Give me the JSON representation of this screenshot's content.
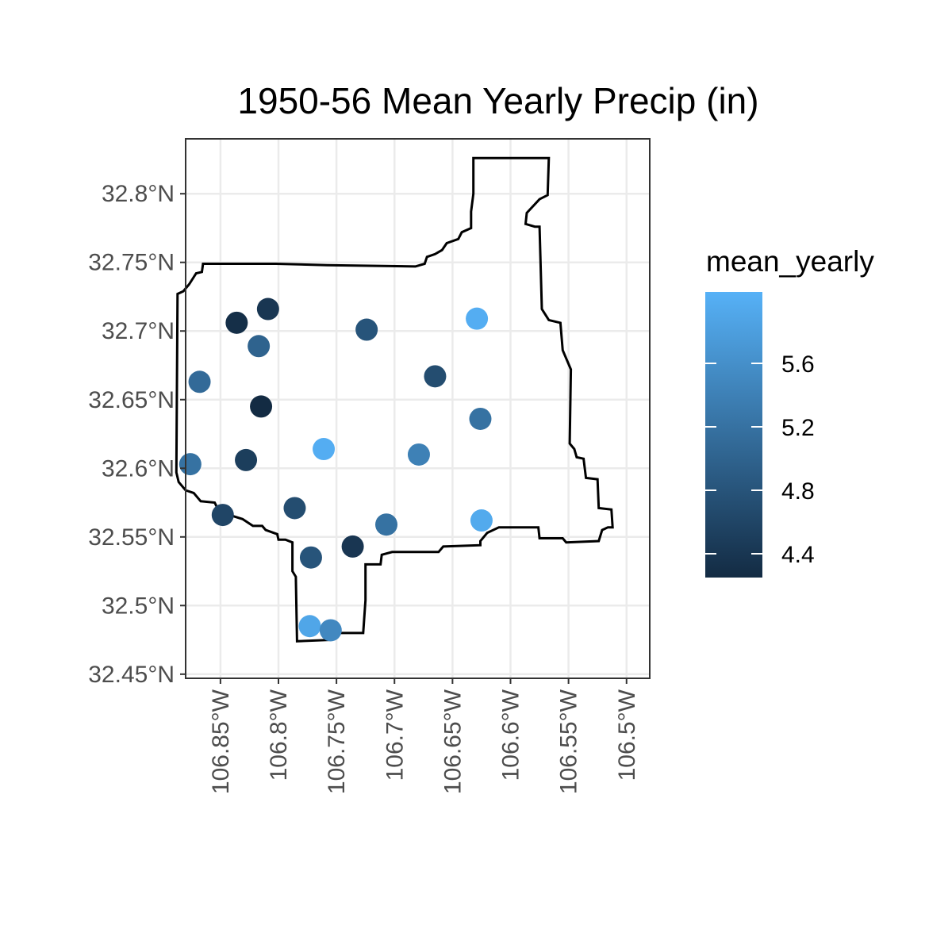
{
  "chart_data": {
    "type": "scatter",
    "title": "1950-56 Mean Yearly Precip (in)",
    "xlabel": "",
    "ylabel": "",
    "x_unit": "degrees longitude (negative = W)",
    "y_unit": "degrees latitude (N)",
    "xlim": [
      -106.88,
      -106.48
    ],
    "ylim": [
      32.447,
      32.84
    ],
    "x_ticks": [
      {
        "value": -106.85,
        "label": "106.85°W"
      },
      {
        "value": -106.8,
        "label": "106.8°W"
      },
      {
        "value": -106.75,
        "label": "106.75°W"
      },
      {
        "value": -106.7,
        "label": "106.7°W"
      },
      {
        "value": -106.65,
        "label": "106.65°W"
      },
      {
        "value": -106.6,
        "label": "106.6°W"
      },
      {
        "value": -106.55,
        "label": "106.55°W"
      },
      {
        "value": -106.5,
        "label": "106.5°W"
      }
    ],
    "y_ticks": [
      {
        "value": 32.8,
        "label": "32.8°N"
      },
      {
        "value": 32.75,
        "label": "32.75°N"
      },
      {
        "value": 32.7,
        "label": "32.7°N"
      },
      {
        "value": 32.65,
        "label": "32.65°N"
      },
      {
        "value": 32.6,
        "label": "32.6°N"
      },
      {
        "value": 32.55,
        "label": "32.55°N"
      },
      {
        "value": 32.5,
        "label": "32.5°N"
      },
      {
        "value": 32.45,
        "label": "32.45°N"
      }
    ],
    "grid": true,
    "legend": {
      "title": "mean_yearly",
      "position": "right",
      "min": 4.25,
      "max": 6.05,
      "ticks": [
        {
          "value": 5.6,
          "label": "5.6"
        },
        {
          "value": 5.2,
          "label": "5.2"
        },
        {
          "value": 4.8,
          "label": "4.8"
        },
        {
          "value": 4.4,
          "label": "4.4"
        }
      ],
      "color_low": "#132B43",
      "color_high": "#56B1F7"
    },
    "points": [
      {
        "lon": -106.836,
        "lat": 32.706,
        "mean_yearly": 4.3
      },
      {
        "lon": -106.809,
        "lat": 32.716,
        "mean_yearly": 4.4
      },
      {
        "lon": -106.817,
        "lat": 32.689,
        "mean_yearly": 5.0
      },
      {
        "lon": -106.724,
        "lat": 32.701,
        "mean_yearly": 4.8
      },
      {
        "lon": -106.629,
        "lat": 32.709,
        "mean_yearly": 6.0
      },
      {
        "lon": -106.868,
        "lat": 32.663,
        "mean_yearly": 5.1
      },
      {
        "lon": -106.665,
        "lat": 32.667,
        "mean_yearly": 4.7
      },
      {
        "lon": -106.815,
        "lat": 32.645,
        "mean_yearly": 4.25
      },
      {
        "lon": -106.626,
        "lat": 32.636,
        "mean_yearly": 5.2
      },
      {
        "lon": -106.761,
        "lat": 32.614,
        "mean_yearly": 6.0
      },
      {
        "lon": -106.679,
        "lat": 32.61,
        "mean_yearly": 5.4
      },
      {
        "lon": -106.828,
        "lat": 32.606,
        "mean_yearly": 4.5
      },
      {
        "lon": -106.876,
        "lat": 32.603,
        "mean_yearly": 5.2
      },
      {
        "lon": -106.786,
        "lat": 32.571,
        "mean_yearly": 4.7
      },
      {
        "lon": -106.848,
        "lat": 32.566,
        "mean_yearly": 4.6
      },
      {
        "lon": -106.625,
        "lat": 32.562,
        "mean_yearly": 5.95
      },
      {
        "lon": -106.707,
        "lat": 32.559,
        "mean_yearly": 5.2
      },
      {
        "lon": -106.736,
        "lat": 32.543,
        "mean_yearly": 4.4
      },
      {
        "lon": -106.772,
        "lat": 32.535,
        "mean_yearly": 4.8
      },
      {
        "lon": -106.773,
        "lat": 32.485,
        "mean_yearly": 5.9
      },
      {
        "lon": -106.755,
        "lat": 32.482,
        "mean_yearly": 5.5
      }
    ],
    "boundary": [
      [
        -106.632,
        32.826
      ],
      [
        -106.567,
        32.826
      ],
      [
        -106.568,
        32.799
      ],
      [
        -106.575,
        32.796
      ],
      [
        -106.586,
        32.786
      ],
      [
        -106.587,
        32.778
      ],
      [
        -106.579,
        32.776
      ],
      [
        -106.575,
        32.776
      ],
      [
        -106.573,
        32.716
      ],
      [
        -106.567,
        32.708
      ],
      [
        -106.557,
        32.706
      ],
      [
        -106.555,
        32.686
      ],
      [
        -106.548,
        32.672
      ],
      [
        -106.549,
        32.618
      ],
      [
        -106.545,
        32.614
      ],
      [
        -106.543,
        32.608
      ],
      [
        -106.537,
        32.607
      ],
      [
        -106.535,
        32.593
      ],
      [
        -106.525,
        32.592
      ],
      [
        -106.524,
        32.571
      ],
      [
        -106.513,
        32.57
      ],
      [
        -106.512,
        32.557
      ],
      [
        -106.516,
        32.557
      ],
      [
        -106.521,
        32.555
      ],
      [
        -106.524,
        32.547
      ],
      [
        -106.552,
        32.546
      ],
      [
        -106.555,
        32.549
      ],
      [
        -106.575,
        32.549
      ],
      [
        -106.576,
        32.557
      ],
      [
        -106.61,
        32.557
      ],
      [
        -106.62,
        32.553
      ],
      [
        -106.626,
        32.547
      ],
      [
        -106.626,
        32.544
      ],
      [
        -106.658,
        32.543
      ],
      [
        -106.662,
        32.539
      ],
      [
        -106.702,
        32.539
      ],
      [
        -106.711,
        32.537
      ],
      [
        -106.712,
        32.53
      ],
      [
        -106.725,
        32.53
      ],
      [
        -106.725,
        32.504
      ],
      [
        -106.727,
        32.48
      ],
      [
        -106.753,
        32.48
      ],
      [
        -106.755,
        32.475
      ],
      [
        -106.784,
        32.474
      ],
      [
        -106.785,
        32.521
      ],
      [
        -106.788,
        32.525
      ],
      [
        -106.788,
        32.546
      ],
      [
        -106.794,
        32.548
      ],
      [
        -106.8,
        32.548
      ],
      [
        -106.801,
        32.552
      ],
      [
        -106.811,
        32.555
      ],
      [
        -106.814,
        32.558
      ],
      [
        -106.822,
        32.558
      ],
      [
        -106.831,
        32.563
      ],
      [
        -106.846,
        32.567
      ],
      [
        -106.852,
        32.57
      ],
      [
        -106.855,
        32.575
      ],
      [
        -106.867,
        32.576
      ],
      [
        -106.873,
        32.582
      ],
      [
        -106.88,
        32.584
      ],
      [
        -106.886,
        32.59
      ],
      [
        -106.888,
        32.597
      ],
      [
        -106.887,
        32.727
      ],
      [
        -106.882,
        32.729
      ],
      [
        -106.877,
        32.734
      ],
      [
        -106.874,
        32.738
      ],
      [
        -106.871,
        32.742
      ],
      [
        -106.866,
        32.743
      ],
      [
        -106.865,
        32.749
      ],
      [
        -106.802,
        32.749
      ],
      [
        -106.758,
        32.748
      ],
      [
        -106.682,
        32.747
      ],
      [
        -106.674,
        32.749
      ],
      [
        -106.672,
        32.754
      ],
      [
        -106.665,
        32.756
      ],
      [
        -106.659,
        32.759
      ],
      [
        -106.655,
        32.764
      ],
      [
        -106.645,
        32.767
      ],
      [
        -106.642,
        32.772
      ],
      [
        -106.634,
        32.775
      ],
      [
        -106.634,
        32.787
      ],
      [
        -106.632,
        32.8
      ]
    ]
  }
}
